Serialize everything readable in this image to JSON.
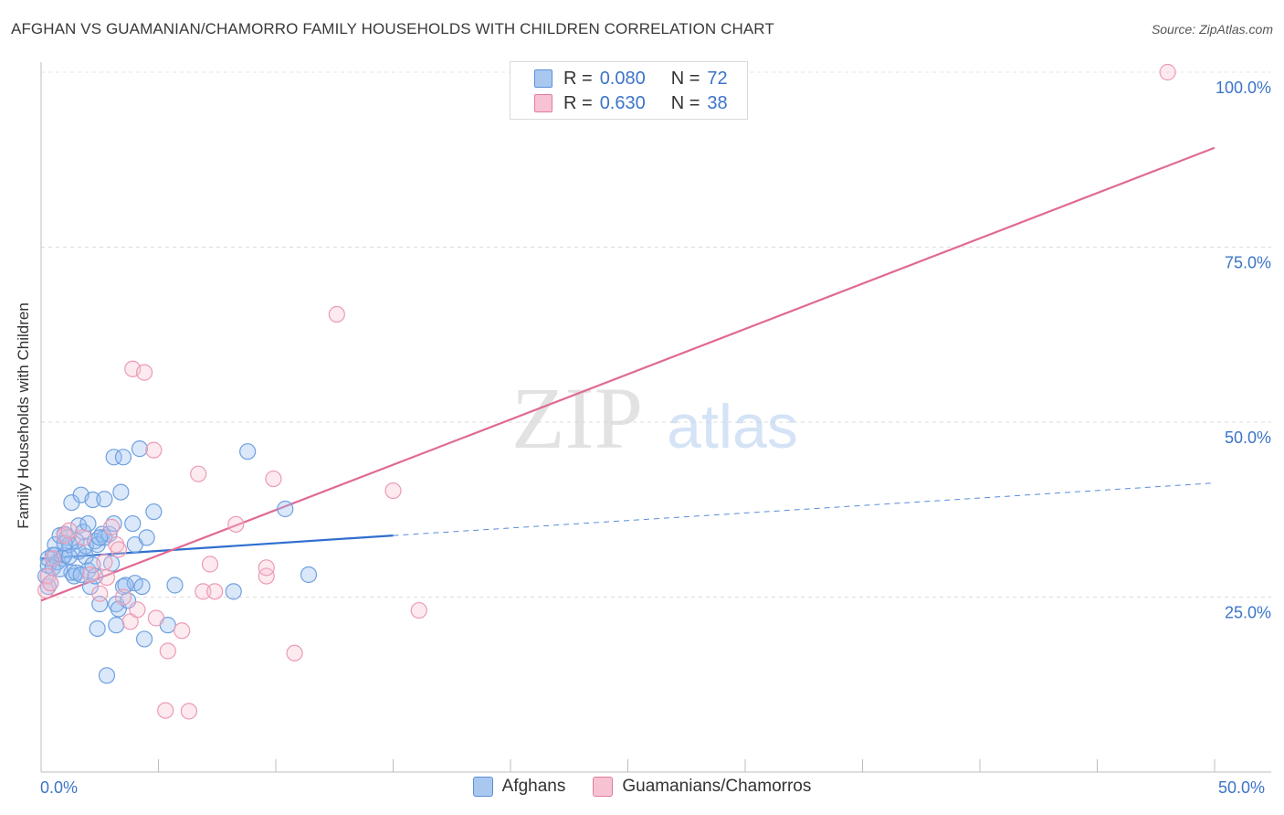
{
  "header": {
    "title": "AFGHAN VS GUAMANIAN/CHAMORRO FAMILY HOUSEHOLDS WITH CHILDREN CORRELATION CHART",
    "source": "Source: ZipAtlas.com"
  },
  "watermark": {
    "zip": "ZIP",
    "atlas": "atlas"
  },
  "legend": {
    "rows": [
      {
        "r_label": "R =",
        "r_value": "0.080",
        "n_label": "N =",
        "n_value": "72",
        "color": "#a9c8f0",
        "border": "#5b8fd6"
      },
      {
        "r_label": "R =",
        "r_value": "0.630",
        "n_label": "N =",
        "n_value": "38",
        "color": "#f7c2d2",
        "border": "#e07d9e"
      }
    ]
  },
  "axes": {
    "y_title": "Family Households with Children",
    "x_min_label": "0.0%",
    "x_max_label": "50.0%"
  },
  "bottom_legend": [
    {
      "label": "Afghans",
      "color": "#a9c8f0",
      "border": "#5b8fd6"
    },
    {
      "label": "Guamanians/Chamorros",
      "color": "#f7c2d2",
      "border": "#e07d9e"
    }
  ],
  "chart_data": {
    "type": "scatter",
    "title": "AFGHAN VS GUAMANIAN/CHAMORRO FAMILY HOUSEHOLDS WITH CHILDREN CORRELATION CHART",
    "xlabel": "",
    "ylabel": "Family Households with Children",
    "xlim": [
      0,
      50
    ],
    "ylim": [
      0,
      102
    ],
    "y_ticks": [
      25,
      50,
      75,
      100
    ],
    "y_tick_labels": [
      "25.0%",
      "50.0%",
      "75.0%",
      "100.0%"
    ],
    "grid": true,
    "series": [
      {
        "name": "Afghans",
        "color": "#6fa0e0",
        "fill": "rgba(150,190,240,0.35)",
        "line_color": "#2f6fcf",
        "trend": {
          "x0": 0,
          "y0": 30.5,
          "x1": 15,
          "y1": 33.8,
          "dash_to_x": 50,
          "dash_to_y": 41.3
        },
        "points": [
          [
            0.2,
            28
          ],
          [
            0.3,
            26.5
          ],
          [
            0.3,
            29.5
          ],
          [
            0.3,
            30.5
          ],
          [
            0.4,
            27
          ],
          [
            0.5,
            31
          ],
          [
            0.6,
            32.5
          ],
          [
            0.6,
            31
          ],
          [
            0.7,
            30
          ],
          [
            0.8,
            33.8
          ],
          [
            0.9,
            30.5
          ],
          [
            1.0,
            34
          ],
          [
            1.0,
            31
          ],
          [
            1.1,
            33.5
          ],
          [
            1.2,
            32.5
          ],
          [
            1.3,
            38.5
          ],
          [
            1.3,
            28.5
          ],
          [
            1.4,
            28
          ],
          [
            1.5,
            28.5
          ],
          [
            1.6,
            31.5
          ],
          [
            1.6,
            35.2
          ],
          [
            1.7,
            39.6
          ],
          [
            1.8,
            34.3
          ],
          [
            1.9,
            30.8
          ],
          [
            1.9,
            32.3
          ],
          [
            2.0,
            35.5
          ],
          [
            2.0,
            28.8
          ],
          [
            2.1,
            26.5
          ],
          [
            2.2,
            38.9
          ],
          [
            2.3,
            33
          ],
          [
            2.3,
            28
          ],
          [
            2.4,
            20.5
          ],
          [
            2.4,
            32.5
          ],
          [
            2.5,
            24
          ],
          [
            2.6,
            34
          ],
          [
            2.7,
            33.5
          ],
          [
            2.7,
            39
          ],
          [
            2.8,
            13.8
          ],
          [
            2.9,
            34
          ],
          [
            3.0,
            29.8
          ],
          [
            3.1,
            35.5
          ],
          [
            3.1,
            45
          ],
          [
            3.2,
            21
          ],
          [
            3.2,
            24
          ],
          [
            3.3,
            23.3
          ],
          [
            3.4,
            40
          ],
          [
            3.5,
            45
          ],
          [
            3.5,
            26.5
          ],
          [
            3.7,
            24.5
          ],
          [
            3.9,
            35.5
          ],
          [
            4.0,
            32.5
          ],
          [
            4.0,
            27
          ],
          [
            4.2,
            46.2
          ],
          [
            4.3,
            26.5
          ],
          [
            4.4,
            19
          ],
          [
            4.5,
            33.5
          ],
          [
            4.8,
            37.2
          ],
          [
            5.4,
            21
          ],
          [
            5.7,
            26.7
          ],
          [
            8.2,
            25.8
          ],
          [
            8.8,
            45.8
          ],
          [
            10.4,
            37.6
          ],
          [
            11.4,
            28.2
          ],
          [
            0.5,
            29.2
          ],
          [
            1.5,
            33
          ],
          [
            2.5,
            33.5
          ],
          [
            0.8,
            29
          ],
          [
            1.2,
            30.8
          ],
          [
            1.7,
            28.2
          ],
          [
            3.6,
            26.7
          ],
          [
            2.2,
            29.6
          ],
          [
            1.0,
            32.7
          ]
        ]
      },
      {
        "name": "Guamanians/Chamorros",
        "color": "#ec9ab5",
        "fill": "rgba(247,194,210,0.35)",
        "line_color": "#e06a93",
        "trend": {
          "x0": 0,
          "y0": 24.5,
          "x1": 50,
          "y1": 89.2
        },
        "points": [
          [
            0.2,
            26
          ],
          [
            0.3,
            28
          ],
          [
            0.4,
            27
          ],
          [
            0.5,
            30.5
          ],
          [
            1.0,
            33.8
          ],
          [
            1.2,
            34.5
          ],
          [
            1.8,
            33.5
          ],
          [
            2.1,
            28.2
          ],
          [
            2.5,
            25.5
          ],
          [
            2.7,
            30
          ],
          [
            2.8,
            27.8
          ],
          [
            3.0,
            35
          ],
          [
            3.2,
            32.5
          ],
          [
            3.3,
            31.8
          ],
          [
            3.5,
            25
          ],
          [
            3.8,
            21.5
          ],
          [
            3.9,
            57.6
          ],
          [
            4.1,
            23.2
          ],
          [
            4.4,
            57.1
          ],
          [
            4.8,
            46
          ],
          [
            4.9,
            22
          ],
          [
            5.3,
            8.8
          ],
          [
            5.4,
            17.3
          ],
          [
            6.0,
            20.2
          ],
          [
            6.3,
            8.7
          ],
          [
            6.7,
            42.6
          ],
          [
            6.9,
            25.8
          ],
          [
            7.2,
            29.7
          ],
          [
            7.4,
            25.8
          ],
          [
            8.3,
            35.4
          ],
          [
            9.6,
            28.0
          ],
          [
            9.6,
            29.2
          ],
          [
            9.9,
            41.9
          ],
          [
            10.8,
            17
          ],
          [
            12.6,
            65.4
          ],
          [
            15.0,
            40.2
          ],
          [
            16.1,
            23.1
          ],
          [
            48.0,
            100
          ]
        ]
      }
    ]
  }
}
